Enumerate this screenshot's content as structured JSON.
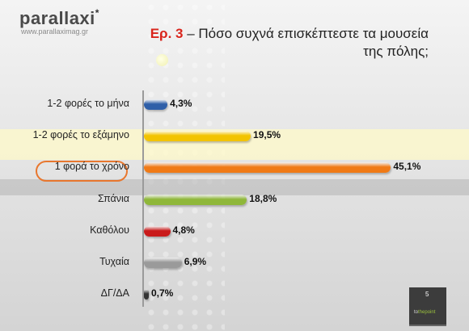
{
  "brand": {
    "logo": "parallaxi",
    "logo_mark": "*",
    "url": "www.parallaximag.gr"
  },
  "title": {
    "ep_label": "Ερ. 3",
    "line1_rest": " – Πόσο συχνά επισκέπτεστε τα μουσεία",
    "line2": "της πόλης;"
  },
  "chart_data": {
    "type": "bar",
    "orientation": "horizontal",
    "categories": [
      "1-2 φορές το μήνα",
      "1-2 φορές το εξάμηνο",
      "1 φορά το χρόνο",
      "Σπάνια",
      "Καθόλου",
      "Τυχαία",
      "ΔΓ/ΔΑ"
    ],
    "values": [
      4.3,
      19.5,
      45.1,
      18.8,
      4.8,
      6.9,
      0.7
    ],
    "labels": [
      "4,3%",
      "19,5%",
      "45,1%",
      "18,8%",
      "4,8%",
      "6,9%",
      "0,7%"
    ],
    "colors": [
      "#2f5fa8",
      "#f2c300",
      "#f07a16",
      "#8fb73a",
      "#c91a1a",
      "#9a9a9a",
      "#333333"
    ],
    "xlim": [
      0,
      48
    ],
    "highlighted_category": "1 φορά το χρόνο",
    "highlight_color": "#e8772e"
  },
  "footer": {
    "page_number": "5",
    "brand_text_a": "to",
    "brand_text_b": "thepoint"
  }
}
